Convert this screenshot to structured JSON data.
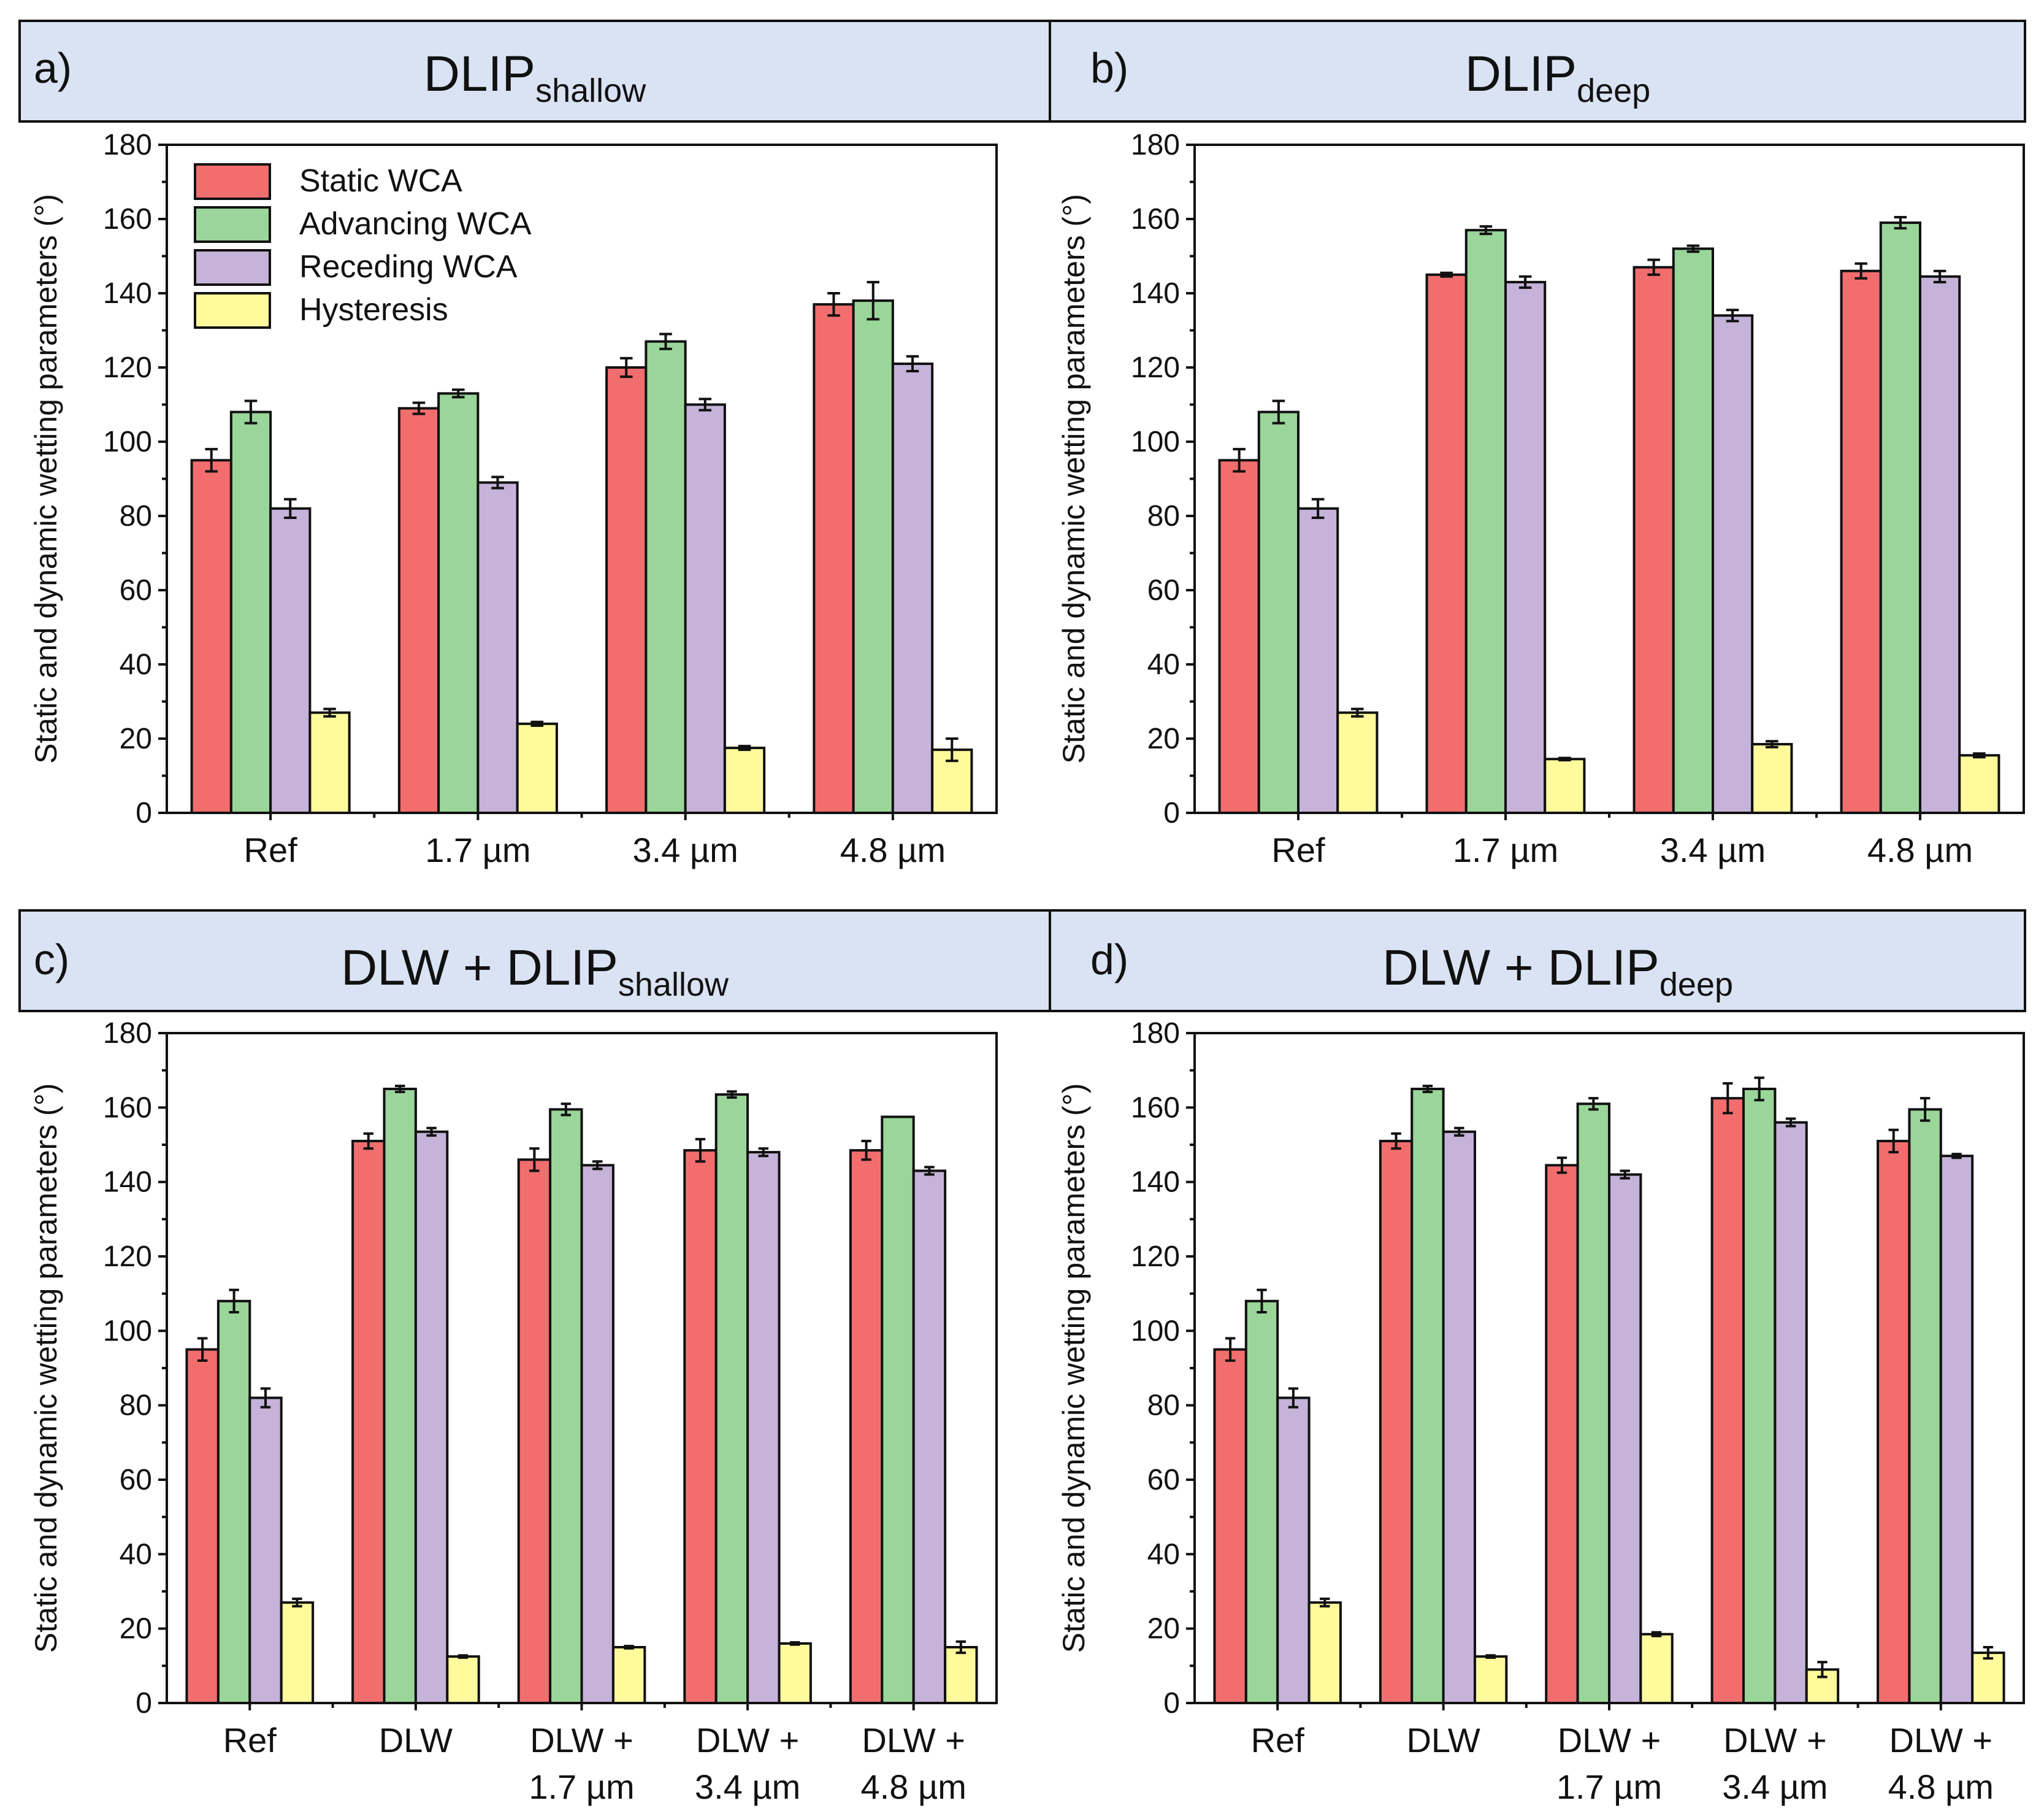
{
  "colors": {
    "static": "#f26e6e",
    "advancing": "#9ad69a",
    "receding": "#c5b3d9",
    "hysteresis": "#fffb9c",
    "header_bg": "#dae3f3"
  },
  "legend": {
    "static": "Static WCA",
    "advancing": "Advancing WCA",
    "receding": "Receding WCA",
    "hysteresis": "Hysteresis"
  },
  "chart_data": [
    {
      "type": "bar",
      "panel_letter": "a)",
      "title": "DLIP",
      "title_sub": "shallow",
      "ylabel": "Static and dynamic wetting parameters (°)",
      "xlabel": "",
      "ylim": [
        0,
        180
      ],
      "yticks": [
        "0",
        "20",
        "40",
        "60",
        "80",
        "100",
        "120",
        "140",
        "160",
        "180"
      ],
      "categories": [
        [
          "Ref"
        ],
        [
          "1.7 µm"
        ],
        [
          "3.4 µm"
        ],
        [
          "4.8 µm"
        ]
      ],
      "series": [
        {
          "name": "Static WCA",
          "values": [
            95,
            109,
            120,
            137
          ],
          "errors": [
            3,
            1.5,
            2.5,
            3
          ]
        },
        {
          "name": "Advancing WCA",
          "values": [
            108,
            113,
            127,
            138
          ],
          "errors": [
            3,
            1,
            2,
            5
          ]
        },
        {
          "name": "Receding WCA",
          "values": [
            82,
            89,
            110,
            121
          ],
          "errors": [
            2.5,
            1.5,
            1.5,
            2
          ]
        },
        {
          "name": "Hysteresis",
          "values": [
            27,
            24,
            17.5,
            17
          ],
          "errors": [
            1,
            0.5,
            0.5,
            3
          ]
        }
      ]
    },
    {
      "type": "bar",
      "panel_letter": "b)",
      "title": "DLIP",
      "title_sub": "deep",
      "ylabel": "Static and dynamic wetting parameters (°)",
      "xlabel": "",
      "ylim": [
        0,
        180
      ],
      "yticks": [
        "0",
        "20",
        "40",
        "60",
        "80",
        "100",
        "120",
        "140",
        "160",
        "180"
      ],
      "categories": [
        [
          "Ref"
        ],
        [
          "1.7 µm"
        ],
        [
          "3.4 µm"
        ],
        [
          "4.8 µm"
        ]
      ],
      "series": [
        {
          "name": "Static WCA",
          "values": [
            95,
            145,
            147,
            146
          ],
          "errors": [
            3,
            0.5,
            2,
            2
          ]
        },
        {
          "name": "Advancing WCA",
          "values": [
            108,
            157,
            152,
            159
          ],
          "errors": [
            3,
            1,
            0.8,
            1.5
          ]
        },
        {
          "name": "Receding WCA",
          "values": [
            82,
            143,
            134,
            144.5
          ],
          "errors": [
            2.5,
            1.5,
            1.5,
            1.5
          ]
        },
        {
          "name": "Hysteresis",
          "values": [
            27,
            14.5,
            18.5,
            15.5
          ],
          "errors": [
            1,
            0.3,
            0.8,
            0.5
          ]
        }
      ]
    },
    {
      "type": "bar",
      "panel_letter": "c)",
      "title": "DLW + DLIP",
      "title_sub": "shallow",
      "ylabel": "Static and dynamic wetting parameters (°)",
      "xlabel": "",
      "ylim": [
        0,
        180
      ],
      "yticks": [
        "0",
        "20",
        "40",
        "60",
        "80",
        "100",
        "120",
        "140",
        "160",
        "180"
      ],
      "categories": [
        [
          "Ref"
        ],
        [
          "DLW"
        ],
        [
          "DLW +",
          "1.7 µm"
        ],
        [
          "DLW +",
          "3.4 µm"
        ],
        [
          "DLW +",
          "4.8 µm"
        ]
      ],
      "series": [
        {
          "name": "Static WCA",
          "values": [
            95,
            151,
            146,
            148.5,
            148.5
          ],
          "errors": [
            3,
            2,
            3,
            3,
            2.5
          ]
        },
        {
          "name": "Advancing WCA",
          "values": [
            108,
            165,
            159.5,
            163.5,
            157.5
          ],
          "errors": [
            3,
            0.8,
            1.5,
            0.8,
            0
          ]
        },
        {
          "name": "Receding WCA",
          "values": [
            82,
            153.5,
            144.5,
            148,
            143
          ],
          "errors": [
            2.5,
            1,
            1,
            1,
            1
          ]
        },
        {
          "name": "Hysteresis",
          "values": [
            27,
            12.5,
            15,
            16,
            15
          ],
          "errors": [
            1,
            0.3,
            0.3,
            0.3,
            1.5
          ]
        }
      ]
    },
    {
      "type": "bar",
      "panel_letter": "d)",
      "title": "DLW + DLIP",
      "title_sub": "deep",
      "ylabel": "Static and dynamic wetting parameters (°)",
      "xlabel": "",
      "ylim": [
        0,
        180
      ],
      "yticks": [
        "0",
        "20",
        "40",
        "60",
        "80",
        "100",
        "120",
        "140",
        "160",
        "180"
      ],
      "categories": [
        [
          "Ref"
        ],
        [
          "DLW"
        ],
        [
          "DLW +",
          "1.7 µm"
        ],
        [
          "DLW +",
          "3.4 µm"
        ],
        [
          "DLW +",
          "4.8 µm"
        ]
      ],
      "series": [
        {
          "name": "Static WCA",
          "values": [
            95,
            151,
            144.5,
            162.5,
            151
          ],
          "errors": [
            3,
            2,
            2,
            4,
            3
          ]
        },
        {
          "name": "Advancing WCA",
          "values": [
            108,
            165,
            161,
            165,
            159.5
          ],
          "errors": [
            3,
            0.8,
            1.5,
            3,
            3
          ]
        },
        {
          "name": "Receding WCA",
          "values": [
            82,
            153.5,
            142,
            156,
            147
          ],
          "errors": [
            2.5,
            1,
            1,
            1,
            0.5
          ]
        },
        {
          "name": "Hysteresis",
          "values": [
            27,
            12.5,
            18.5,
            9,
            13.5
          ],
          "errors": [
            1,
            0.3,
            0.5,
            2,
            1.5
          ]
        }
      ]
    }
  ]
}
